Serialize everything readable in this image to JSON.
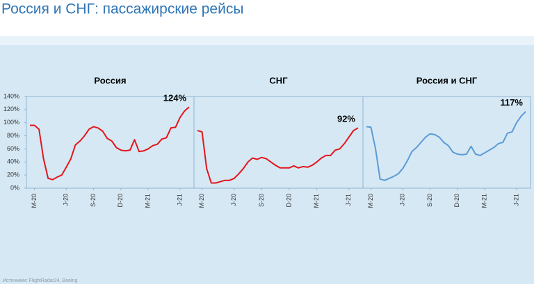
{
  "title": "Россия и СНГ: пассажирские рейсы",
  "source": "Источники: FlightRadar24, Boeing",
  "chart_data": [
    {
      "type": "line",
      "title": "Россия",
      "color": "#e3161c",
      "end_label": "124%",
      "categories": [
        null,
        "M-20",
        null,
        null,
        null,
        null,
        null,
        null,
        "J-20",
        null,
        null,
        null,
        null,
        null,
        "S-20",
        null,
        null,
        null,
        null,
        null,
        "D-20",
        null,
        null,
        null,
        null,
        null,
        "M-21",
        null,
        null,
        null,
        null,
        null,
        null,
        "J-21",
        null,
        null
      ],
      "values": [
        96,
        96,
        90,
        45,
        15,
        13,
        17,
        20,
        32,
        45,
        66,
        72,
        80,
        90,
        94,
        92,
        87,
        76,
        72,
        62,
        58,
        57,
        58,
        74,
        56,
        57,
        60,
        65,
        67,
        75,
        77,
        92,
        93,
        108,
        118,
        124
      ],
      "ylim": [
        0,
        140
      ],
      "yticks": [
        {
          "value": 0,
          "label": "0%"
        },
        {
          "value": 20,
          "label": "20%"
        },
        {
          "value": 40,
          "label": "40%"
        },
        {
          "value": 60,
          "label": "60%"
        },
        {
          "value": 80,
          "label": "80%"
        },
        {
          "value": 100,
          "label": "100%"
        },
        {
          "value": 120,
          "label": "120%"
        },
        {
          "value": 140,
          "label": "140%"
        }
      ]
    },
    {
      "type": "line",
      "title": "СНГ",
      "color": "#e3161c",
      "end_label": "92%",
      "categories": [
        null,
        "M-20",
        null,
        null,
        null,
        null,
        null,
        null,
        "J-20",
        null,
        null,
        null,
        null,
        null,
        "S-20",
        null,
        null,
        null,
        null,
        null,
        "D-20",
        null,
        null,
        null,
        null,
        null,
        "M-21",
        null,
        null,
        null,
        null,
        null,
        null,
        "J-21",
        null,
        null
      ],
      "values": [
        88,
        86,
        30,
        8,
        8,
        10,
        12,
        12,
        15,
        22,
        30,
        40,
        46,
        44,
        47,
        45,
        40,
        35,
        31,
        31,
        31,
        34,
        31,
        33,
        32,
        35,
        40,
        46,
        50,
        50,
        58,
        60,
        68,
        78,
        88,
        92
      ],
      "ylim": [
        0,
        140
      ]
    },
    {
      "type": "line",
      "title": "Россия и СНГ",
      "color": "#5b9bd5",
      "end_label": "117%",
      "categories": [
        null,
        "M-20",
        null,
        null,
        null,
        null,
        null,
        null,
        "J-20",
        null,
        null,
        null,
        null,
        null,
        "S-20",
        null,
        null,
        null,
        null,
        null,
        "D-20",
        null,
        null,
        null,
        null,
        null,
        "M-21",
        null,
        null,
        null,
        null,
        null,
        null,
        "J-21",
        null,
        null
      ],
      "values": [
        94,
        93,
        60,
        14,
        12,
        15,
        18,
        22,
        30,
        42,
        56,
        62,
        70,
        78,
        83,
        82,
        78,
        70,
        65,
        55,
        52,
        51,
        52,
        64,
        52,
        50,
        54,
        58,
        62,
        68,
        70,
        84,
        86,
        100,
        110,
        117
      ],
      "ylim": [
        0,
        140
      ]
    }
  ]
}
